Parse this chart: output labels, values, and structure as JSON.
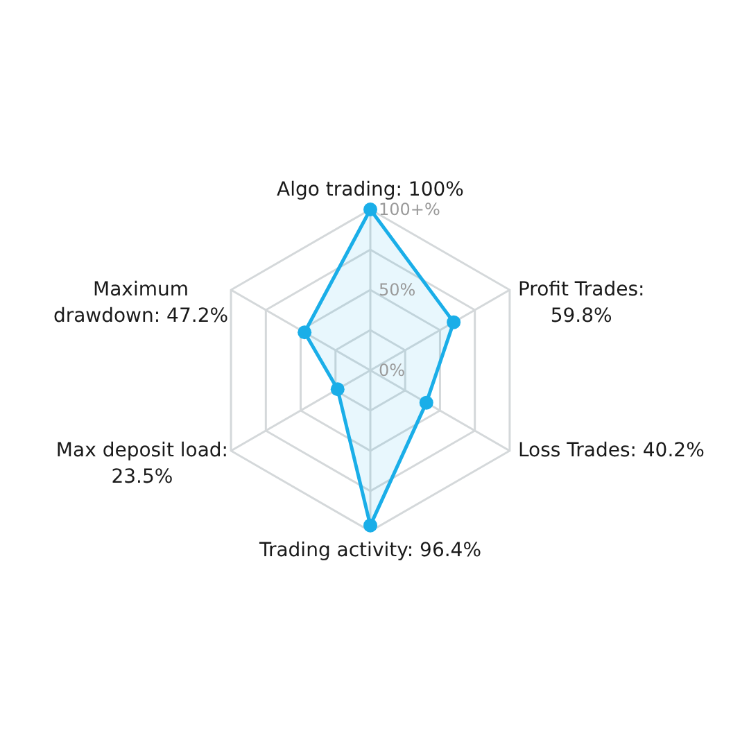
{
  "chart_data": {
    "type": "radar",
    "categories": [
      "Algo trading: 100%",
      "Profit Trades:\n59.8%",
      "Loss Trades: 40.2%",
      "Trading activity: 96.4%",
      "Max deposit load:\n23.5%",
      "Maximum\ndrawdown: 47.2%"
    ],
    "series": [
      {
        "color": "#1aaee8",
        "values": [
          100,
          59.8,
          40.2,
          96.4,
          23.5,
          47.2
        ]
      }
    ],
    "ylim": [
      0,
      100
    ],
    "yticks": [
      {
        "value": 0,
        "label": "0%"
      },
      {
        "value": 50,
        "label": "50%"
      },
      {
        "value": 100,
        "label": "100+%"
      }
    ],
    "grid": true,
    "marker": "circle"
  }
}
